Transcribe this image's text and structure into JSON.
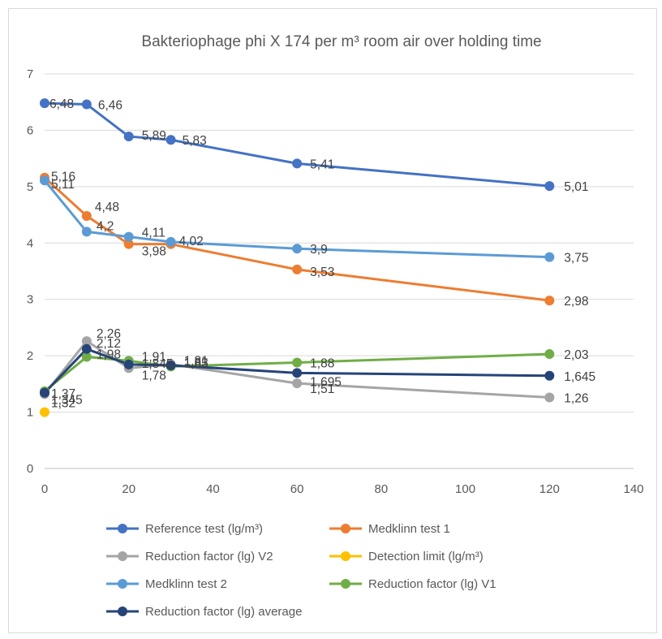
{
  "chart_data": {
    "type": "line",
    "title": "Bakteriophage phi X 174  per m³ room air over holding time",
    "xlabel": "",
    "ylabel": "",
    "xlim": [
      0,
      140
    ],
    "ylim": [
      0,
      7
    ],
    "x_ticks": [
      "0",
      "20",
      "40",
      "60",
      "80",
      "100",
      "120",
      "140"
    ],
    "y_ticks": [
      "0",
      "1",
      "2",
      "3",
      "4",
      "5",
      "6",
      "7"
    ],
    "grid": "horizontal",
    "legend_position": "bottom",
    "series": [
      {
        "name": "Reference test (lg/m³)",
        "color": "#4472c4",
        "x": [
          0,
          10,
          20,
          30,
          60,
          120
        ],
        "y": [
          6.48,
          6.46,
          5.89,
          5.83,
          5.41,
          5.01
        ],
        "labels": [
          "6,48",
          "6,46",
          "5,89",
          "5,83",
          "5,41",
          "5,01"
        ]
      },
      {
        "name": "Medklinn test 1",
        "color": "#ed7d31",
        "x": [
          0,
          10,
          20,
          30,
          60,
          120
        ],
        "y": [
          5.16,
          4.48,
          3.98,
          3.98,
          3.53,
          2.98
        ],
        "labels": [
          "5,16",
          "4,48",
          "3,98",
          "3,98",
          "3,53",
          "2,98"
        ]
      },
      {
        "name": "Reduction factor (lg) V2",
        "color": "#a5a5a5",
        "x": [
          0,
          10,
          20,
          30,
          60,
          120
        ],
        "y": [
          1.32,
          2.26,
          1.78,
          1.85,
          1.51,
          1.26
        ],
        "labels": [
          "1,32",
          "2,26",
          "1,78",
          "1,85",
          "1,51",
          "1,26"
        ]
      },
      {
        "name": "Detection limit (lg/m³)",
        "color": "#ffc000",
        "x": [
          0
        ],
        "y": [
          1.0
        ],
        "labels": []
      },
      {
        "name": "Medklinn test 2",
        "color": "#5b9bd5",
        "x": [
          0,
          10,
          20,
          30,
          60,
          120
        ],
        "y": [
          5.11,
          4.2,
          4.11,
          4.02,
          3.9,
          3.75
        ],
        "labels": [
          "5,11",
          "4,2",
          "4,11",
          "4,02",
          "3,9",
          "3,75"
        ]
      },
      {
        "name": "Reduction factor (lg) V1",
        "color": "#70ad47",
        "x": [
          0,
          10,
          20,
          30,
          60,
          120
        ],
        "y": [
          1.37,
          1.98,
          1.91,
          1.81,
          1.88,
          2.03
        ],
        "labels": [
          "1,37",
          "1,98",
          "1,91",
          "1,81",
          "1,88",
          "2,03"
        ]
      },
      {
        "name": "Reduction factor (lg) average",
        "color": "#264478",
        "x": [
          0,
          10,
          20,
          30,
          60,
          120
        ],
        "y": [
          1.345,
          2.12,
          1.845,
          1.83,
          1.695,
          1.645
        ],
        "labels": [
          "1,345",
          "2,12",
          "1,845",
          "1,83",
          "1,695",
          "1,645"
        ]
      }
    ]
  }
}
